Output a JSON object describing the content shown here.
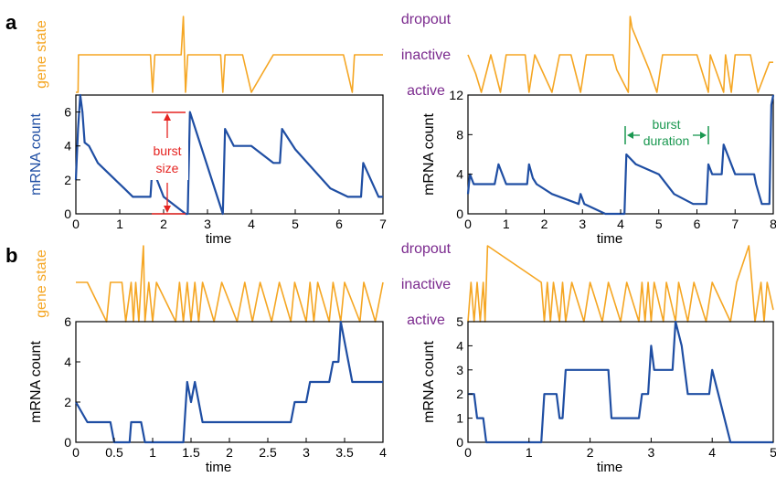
{
  "panels": {
    "a": "a",
    "b": "b"
  },
  "state_labels": {
    "dropout": "dropout",
    "inactive": "inactive",
    "active": "active"
  },
  "colors": {
    "gene": "#f5a623",
    "mrna": "#1f4ea3",
    "state_text": "#7b2a8e",
    "burst_size": "#e52421",
    "burst_duration": "#1a9850"
  },
  "annotations": {
    "burst_size": [
      "burst",
      "size"
    ],
    "burst_duration": [
      "burst",
      "duration"
    ]
  },
  "chart_data": [
    {
      "id": "a-left",
      "type": "line",
      "xlabel": "time",
      "ylabel": "mRNA count",
      "gene_ylabel": "gene state",
      "xlim": [
        0,
        7
      ],
      "ylim": [
        0,
        7
      ],
      "xticks": [
        "0",
        "1",
        "2",
        "3",
        "4",
        "5",
        "6",
        "7"
      ],
      "yticks": [
        "0",
        "2",
        "4",
        "6"
      ],
      "ytick_values": [
        0,
        2,
        4,
        6
      ],
      "gene_state": [
        [
          0,
          0
        ],
        [
          0.05,
          0
        ],
        [
          0.06,
          1
        ],
        [
          1.7,
          1
        ],
        [
          1.75,
          0
        ],
        [
          1.8,
          1
        ],
        [
          2.4,
          1
        ],
        [
          2.45,
          2
        ],
        [
          2.5,
          0
        ],
        [
          2.55,
          1
        ],
        [
          3.3,
          1
        ],
        [
          3.35,
          0
        ],
        [
          3.4,
          1
        ],
        [
          3.8,
          1
        ],
        [
          4.0,
          0
        ],
        [
          4.5,
          1
        ],
        [
          5.4,
          1
        ],
        [
          6.1,
          1
        ],
        [
          6.3,
          0
        ],
        [
          6.35,
          1
        ],
        [
          6.9,
          1
        ],
        [
          7.0,
          1
        ]
      ],
      "mrna": [
        [
          0,
          2
        ],
        [
          0.05,
          5
        ],
        [
          0.1,
          7
        ],
        [
          0.15,
          6
        ],
        [
          0.2,
          4.2
        ],
        [
          0.3,
          4
        ],
        [
          0.5,
          3
        ],
        [
          1.1,
          1.5
        ],
        [
          1.3,
          1
        ],
        [
          1.7,
          1
        ],
        [
          1.75,
          3
        ],
        [
          1.85,
          2
        ],
        [
          2.0,
          1
        ],
        [
          2.5,
          0
        ],
        [
          2.55,
          0
        ],
        [
          2.6,
          6
        ],
        [
          3.3,
          0.4
        ],
        [
          3.35,
          0
        ],
        [
          3.4,
          5
        ],
        [
          3.6,
          4
        ],
        [
          4.0,
          4
        ],
        [
          4.5,
          3
        ],
        [
          4.65,
          3
        ],
        [
          4.7,
          5
        ],
        [
          5.0,
          3.8
        ],
        [
          5.8,
          1.5
        ],
        [
          6.2,
          1
        ],
        [
          6.5,
          1
        ],
        [
          6.55,
          3
        ],
        [
          6.9,
          1
        ],
        [
          7.0,
          1
        ]
      ]
    },
    {
      "id": "a-right",
      "type": "line",
      "xlabel": "time",
      "ylabel": "mRNA count",
      "xlim": [
        0,
        8
      ],
      "ylim": [
        0,
        12
      ],
      "xticks": [
        "0",
        "1",
        "2",
        "3",
        "4",
        "5",
        "6",
        "7",
        "8"
      ],
      "yticks": [
        "0",
        "4",
        "8",
        "12"
      ],
      "ytick_values": [
        0,
        4,
        8,
        12
      ],
      "gene_state": [
        [
          0,
          1
        ],
        [
          0.2,
          0.5
        ],
        [
          0.35,
          0
        ],
        [
          0.6,
          1
        ],
        [
          0.85,
          0
        ],
        [
          1.0,
          1
        ],
        [
          1.5,
          1
        ],
        [
          1.6,
          0
        ],
        [
          1.75,
          1
        ],
        [
          2.2,
          0
        ],
        [
          2.4,
          1
        ],
        [
          2.7,
          1
        ],
        [
          2.95,
          0
        ],
        [
          3.1,
          1
        ],
        [
          3.8,
          1
        ],
        [
          3.9,
          0.6
        ],
        [
          4.2,
          0
        ],
        [
          4.25,
          2
        ],
        [
          4.3,
          1.7
        ],
        [
          4.75,
          0.6
        ],
        [
          4.95,
          0
        ],
        [
          5.1,
          1
        ],
        [
          6.0,
          1
        ],
        [
          6.3,
          0
        ],
        [
          6.35,
          1
        ],
        [
          6.7,
          0
        ],
        [
          6.75,
          1
        ],
        [
          6.9,
          0
        ],
        [
          7.0,
          1
        ],
        [
          7.4,
          1
        ],
        [
          7.6,
          0
        ],
        [
          7.9,
          0.8
        ],
        [
          8.0,
          0.8
        ]
      ],
      "mrna": [
        [
          0,
          2
        ],
        [
          0.05,
          4
        ],
        [
          0.15,
          3
        ],
        [
          0.7,
          3
        ],
        [
          0.8,
          5
        ],
        [
          1.0,
          3
        ],
        [
          1.55,
          3
        ],
        [
          1.6,
          5
        ],
        [
          1.7,
          3.6
        ],
        [
          1.8,
          3
        ],
        [
          2.2,
          2
        ],
        [
          2.9,
          1
        ],
        [
          2.95,
          2
        ],
        [
          3.05,
          1
        ],
        [
          3.6,
          0
        ],
        [
          4.1,
          0
        ],
        [
          4.15,
          6
        ],
        [
          4.4,
          5
        ],
        [
          5.0,
          4
        ],
        [
          5.4,
          2
        ],
        [
          5.9,
          1
        ],
        [
          6.25,
          1
        ],
        [
          6.3,
          5
        ],
        [
          6.4,
          4
        ],
        [
          6.65,
          4
        ],
        [
          6.7,
          7
        ],
        [
          6.8,
          6
        ],
        [
          7.0,
          4
        ],
        [
          7.5,
          4
        ],
        [
          7.55,
          3
        ],
        [
          7.7,
          1
        ],
        [
          7.9,
          1
        ],
        [
          7.95,
          11
        ],
        [
          8.0,
          12
        ]
      ]
    },
    {
      "id": "b-left",
      "type": "line",
      "xlabel": "time",
      "ylabel": "mRNA count",
      "gene_ylabel": "gene state",
      "xlim": [
        0,
        4
      ],
      "ylim": [
        0,
        6
      ],
      "xticks": [
        "0",
        "0.5",
        "1",
        "1.5",
        "2",
        "2.5",
        "3",
        "3.5",
        "4"
      ],
      "yticks": [
        "0",
        "2",
        "4",
        "6"
      ],
      "ytick_values": [
        0,
        2,
        4,
        6
      ],
      "gene_state": [
        [
          0,
          1
        ],
        [
          0.15,
          1
        ],
        [
          0.4,
          0
        ],
        [
          0.45,
          1
        ],
        [
          0.6,
          1
        ],
        [
          0.65,
          0
        ],
        [
          0.72,
          1
        ],
        [
          0.75,
          0
        ],
        [
          0.78,
          1
        ],
        [
          0.82,
          0
        ],
        [
          0.85,
          1
        ],
        [
          0.88,
          2
        ],
        [
          0.9,
          0
        ],
        [
          0.95,
          1
        ],
        [
          1.0,
          0
        ],
        [
          1.05,
          1
        ],
        [
          1.3,
          0
        ],
        [
          1.35,
          1
        ],
        [
          1.4,
          0
        ],
        [
          1.45,
          1
        ],
        [
          1.5,
          0
        ],
        [
          1.55,
          1
        ],
        [
          1.6,
          0
        ],
        [
          1.65,
          1
        ],
        [
          1.8,
          0
        ],
        [
          1.9,
          1
        ],
        [
          2.1,
          0
        ],
        [
          2.2,
          1
        ],
        [
          2.3,
          0
        ],
        [
          2.4,
          1
        ],
        [
          2.55,
          0
        ],
        [
          2.65,
          1
        ],
        [
          2.8,
          0
        ],
        [
          2.85,
          1
        ],
        [
          3.0,
          0
        ],
        [
          3.05,
          1
        ],
        [
          3.1,
          0
        ],
        [
          3.15,
          1
        ],
        [
          3.3,
          0
        ],
        [
          3.35,
          1
        ],
        [
          3.45,
          0
        ],
        [
          3.5,
          1
        ],
        [
          3.7,
          0
        ],
        [
          3.75,
          1
        ],
        [
          3.9,
          0
        ],
        [
          4.0,
          1
        ]
      ],
      "mrna": [
        [
          0,
          2
        ],
        [
          0.15,
          1
        ],
        [
          0.45,
          1
        ],
        [
          0.5,
          0
        ],
        [
          0.7,
          0
        ],
        [
          0.72,
          1
        ],
        [
          0.85,
          1
        ],
        [
          0.9,
          0
        ],
        [
          1.4,
          0
        ],
        [
          1.45,
          3
        ],
        [
          1.5,
          2
        ],
        [
          1.55,
          3
        ],
        [
          1.6,
          2
        ],
        [
          1.65,
          1
        ],
        [
          2.8,
          1
        ],
        [
          2.85,
          2
        ],
        [
          3.0,
          2
        ],
        [
          3.05,
          3
        ],
        [
          3.3,
          3
        ],
        [
          3.35,
          4
        ],
        [
          3.42,
          4
        ],
        [
          3.45,
          6
        ],
        [
          3.5,
          5
        ],
        [
          3.55,
          4
        ],
        [
          3.6,
          3
        ],
        [
          4.0,
          3
        ]
      ]
    },
    {
      "id": "b-right",
      "type": "line",
      "xlabel": "time",
      "ylabel": "mRNA count",
      "xlim": [
        0,
        5
      ],
      "ylim": [
        0,
        5
      ],
      "xticks": [
        "0",
        "1",
        "2",
        "3",
        "4",
        "5"
      ],
      "yticks": [
        "0",
        "1",
        "2",
        "3",
        "4",
        "5"
      ],
      "ytick_values": [
        0,
        1,
        2,
        3,
        4,
        5
      ],
      "gene_state": [
        [
          0,
          0
        ],
        [
          0.05,
          1
        ],
        [
          0.1,
          0
        ],
        [
          0.15,
          1
        ],
        [
          0.2,
          0
        ],
        [
          0.25,
          1
        ],
        [
          0.28,
          0
        ],
        [
          0.32,
          2
        ],
        [
          1.2,
          1
        ],
        [
          1.25,
          0
        ],
        [
          1.3,
          1
        ],
        [
          1.35,
          0
        ],
        [
          1.4,
          1
        ],
        [
          1.5,
          0
        ],
        [
          1.55,
          1
        ],
        [
          1.6,
          0
        ],
        [
          1.7,
          1
        ],
        [
          1.9,
          0
        ],
        [
          2.0,
          1
        ],
        [
          2.2,
          0
        ],
        [
          2.3,
          1
        ],
        [
          2.5,
          0
        ],
        [
          2.6,
          1
        ],
        [
          2.8,
          0
        ],
        [
          2.85,
          1
        ],
        [
          2.9,
          0
        ],
        [
          2.95,
          1
        ],
        [
          3.0,
          0
        ],
        [
          3.05,
          1
        ],
        [
          3.2,
          0
        ],
        [
          3.25,
          1
        ],
        [
          3.4,
          0
        ],
        [
          3.45,
          1
        ],
        [
          3.6,
          0
        ],
        [
          3.7,
          1
        ],
        [
          3.9,
          0
        ],
        [
          4.0,
          1
        ],
        [
          4.3,
          0
        ],
        [
          4.4,
          1
        ],
        [
          4.6,
          2
        ],
        [
          4.65,
          1
        ],
        [
          4.7,
          0
        ],
        [
          4.8,
          1
        ],
        [
          4.85,
          0
        ],
        [
          4.9,
          1
        ],
        [
          5.0,
          0.3
        ]
      ],
      "mrna": [
        [
          0,
          2
        ],
        [
          0.1,
          2
        ],
        [
          0.15,
          1
        ],
        [
          0.25,
          1
        ],
        [
          0.3,
          0
        ],
        [
          1.2,
          0
        ],
        [
          1.25,
          2
        ],
        [
          1.45,
          2
        ],
        [
          1.5,
          1
        ],
        [
          1.55,
          1
        ],
        [
          1.6,
          3
        ],
        [
          2.3,
          3
        ],
        [
          2.35,
          1
        ],
        [
          2.8,
          1
        ],
        [
          2.85,
          2
        ],
        [
          2.95,
          2
        ],
        [
          3.0,
          4
        ],
        [
          3.05,
          3
        ],
        [
          3.35,
          3
        ],
        [
          3.4,
          5
        ],
        [
          3.5,
          4
        ],
        [
          3.6,
          2
        ],
        [
          3.95,
          2
        ],
        [
          4.0,
          3
        ],
        [
          4.1,
          2
        ],
        [
          4.3,
          0
        ],
        [
          5.0,
          0
        ]
      ]
    }
  ]
}
